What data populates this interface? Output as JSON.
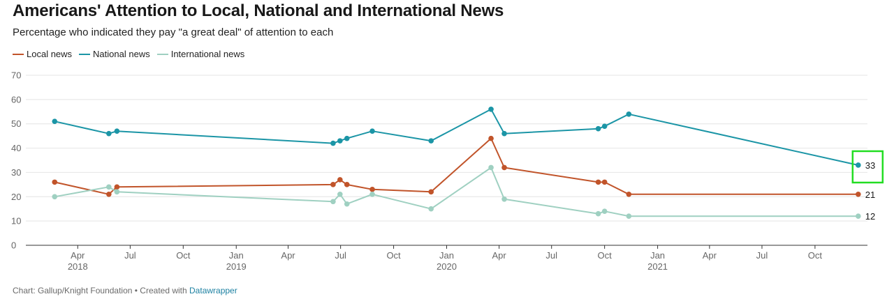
{
  "header": {
    "title": "Americans' Attention to Local, National and International News",
    "subtitle": "Percentage who indicated they pay \"a great deal\" of attention to each"
  },
  "footer": {
    "credit": "Chart: Gallup/Knight Foundation • Created with ",
    "tool_link": "Datawrapper"
  },
  "colors": {
    "local": "#c1542a",
    "national": "#1b95a6",
    "international": "#9fd0c1",
    "highlight": "#22dd22"
  },
  "chart_data": {
    "type": "line",
    "title": "Americans' Attention to Local, National and International News",
    "subtitle": "Percentage who indicated they pay \"a great deal\" of attention to each",
    "xlabel": "",
    "ylabel": "",
    "ylim": [
      0,
      70
    ],
    "yticks": [
      0,
      10,
      20,
      30,
      40,
      50,
      60,
      70
    ],
    "xlim": [
      "2018-01-01",
      "2021-12-31"
    ],
    "xticks": [
      {
        "date": "2018-04-01",
        "label": "Apr",
        "year": "2018"
      },
      {
        "date": "2018-07-01",
        "label": "Jul",
        "year": ""
      },
      {
        "date": "2018-10-01",
        "label": "Oct",
        "year": ""
      },
      {
        "date": "2019-01-01",
        "label": "Jan",
        "year": "2019"
      },
      {
        "date": "2019-04-01",
        "label": "Apr",
        "year": ""
      },
      {
        "date": "2019-07-01",
        "label": "Jul",
        "year": ""
      },
      {
        "date": "2019-10-01",
        "label": "Oct",
        "year": ""
      },
      {
        "date": "2020-01-01",
        "label": "Jan",
        "year": "2020"
      },
      {
        "date": "2020-04-01",
        "label": "Apr",
        "year": ""
      },
      {
        "date": "2020-07-01",
        "label": "Jul",
        "year": ""
      },
      {
        "date": "2020-10-01",
        "label": "Oct",
        "year": ""
      },
      {
        "date": "2021-01-01",
        "label": "Jan",
        "year": "2021"
      },
      {
        "date": "2021-04-01",
        "label": "Apr",
        "year": ""
      },
      {
        "date": "2021-07-01",
        "label": "Jul",
        "year": ""
      },
      {
        "date": "2021-10-01",
        "label": "Oct",
        "year": ""
      }
    ],
    "grid": true,
    "legend_position": "top-left",
    "series": [
      {
        "name": "Local news",
        "color_key": "local",
        "end_label": "21",
        "points": [
          {
            "x": "2018-02-20",
            "y": 26
          },
          {
            "x": "2018-05-25",
            "y": 21
          },
          {
            "x": "2018-06-08",
            "y": 24
          },
          {
            "x": "2019-06-18",
            "y": 25
          },
          {
            "x": "2019-06-30",
            "y": 27
          },
          {
            "x": "2019-07-12",
            "y": 25
          },
          {
            "x": "2019-08-25",
            "y": 23
          },
          {
            "x": "2019-12-05",
            "y": 22
          },
          {
            "x": "2020-03-18",
            "y": 44
          },
          {
            "x": "2020-04-10",
            "y": 32
          },
          {
            "x": "2020-09-20",
            "y": 26
          },
          {
            "x": "2020-10-01",
            "y": 26
          },
          {
            "x": "2020-11-12",
            "y": 21
          },
          {
            "x": "2021-12-15",
            "y": 21
          }
        ]
      },
      {
        "name": "National news",
        "color_key": "national",
        "end_label": "33",
        "points": [
          {
            "x": "2018-02-20",
            "y": 51
          },
          {
            "x": "2018-05-25",
            "y": 46
          },
          {
            "x": "2018-06-08",
            "y": 47
          },
          {
            "x": "2019-06-18",
            "y": 42
          },
          {
            "x": "2019-06-30",
            "y": 43
          },
          {
            "x": "2019-07-12",
            "y": 44
          },
          {
            "x": "2019-08-25",
            "y": 47
          },
          {
            "x": "2019-12-05",
            "y": 43
          },
          {
            "x": "2020-03-18",
            "y": 56
          },
          {
            "x": "2020-04-10",
            "y": 46
          },
          {
            "x": "2020-09-20",
            "y": 48
          },
          {
            "x": "2020-10-01",
            "y": 49
          },
          {
            "x": "2020-11-12",
            "y": 54
          },
          {
            "x": "2021-12-15",
            "y": 33
          }
        ]
      },
      {
        "name": "International news",
        "color_key": "international",
        "end_label": "12",
        "points": [
          {
            "x": "2018-02-20",
            "y": 20
          },
          {
            "x": "2018-05-25",
            "y": 24
          },
          {
            "x": "2018-06-08",
            "y": 22
          },
          {
            "x": "2019-06-18",
            "y": 18
          },
          {
            "x": "2019-06-30",
            "y": 21
          },
          {
            "x": "2019-07-12",
            "y": 17
          },
          {
            "x": "2019-08-25",
            "y": 21
          },
          {
            "x": "2019-12-05",
            "y": 15
          },
          {
            "x": "2020-03-18",
            "y": 32
          },
          {
            "x": "2020-04-10",
            "y": 19
          },
          {
            "x": "2020-09-20",
            "y": 13
          },
          {
            "x": "2020-10-01",
            "y": 14
          },
          {
            "x": "2020-11-12",
            "y": 12
          },
          {
            "x": "2021-12-15",
            "y": 12
          }
        ]
      }
    ],
    "highlight": {
      "series": "National news",
      "value": "33"
    }
  }
}
